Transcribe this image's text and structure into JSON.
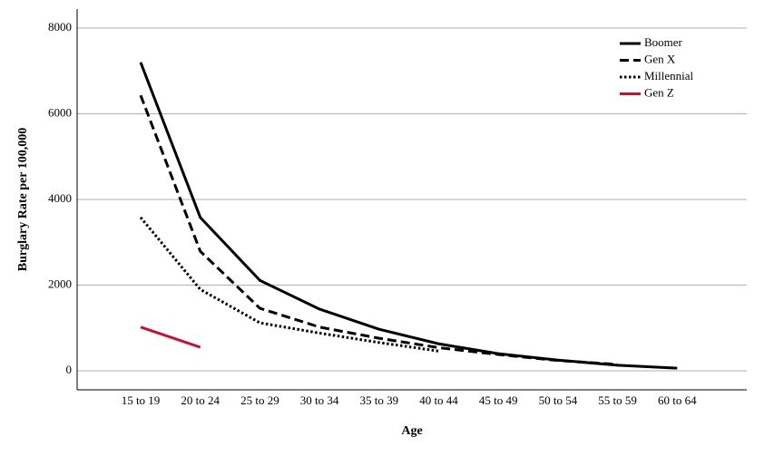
{
  "chart_data": {
    "type": "line",
    "x_label": "Age",
    "y_label": "Burglary Rate per 100,000",
    "categories": [
      "15 to 19",
      "20 to 24",
      "25 to 29",
      "30 to 34",
      "35 to 39",
      "40 to 44",
      "45 to 49",
      "50 to 54",
      "55 to 59",
      "60 to 64"
    ],
    "series": [
      {
        "name": "Boomer",
        "color": "#000000",
        "dash": "solid",
        "values": [
          7200,
          3580,
          2110,
          1440,
          970,
          630,
          400,
          250,
          130,
          60
        ]
      },
      {
        "name": "Gen X",
        "color": "#000000",
        "dash": "dashed",
        "values": [
          6430,
          2790,
          1460,
          1020,
          760,
          540,
          380,
          240,
          150,
          null
        ]
      },
      {
        "name": "Millennial",
        "color": "#000000",
        "dash": "dotted",
        "values": [
          3580,
          1900,
          1120,
          880,
          660,
          460,
          null,
          null,
          null,
          null
        ]
      },
      {
        "name": "Gen Z",
        "color": "#c8102e",
        "dash": "solid",
        "values": [
          1020,
          550,
          null,
          null,
          null,
          null,
          null,
          null,
          null,
          null
        ]
      }
    ],
    "ylim": [
      -444,
      8444
    ],
    "yticks": [
      0,
      2000,
      4000,
      6000,
      8000
    ],
    "grid": true,
    "legend": "top-right"
  }
}
